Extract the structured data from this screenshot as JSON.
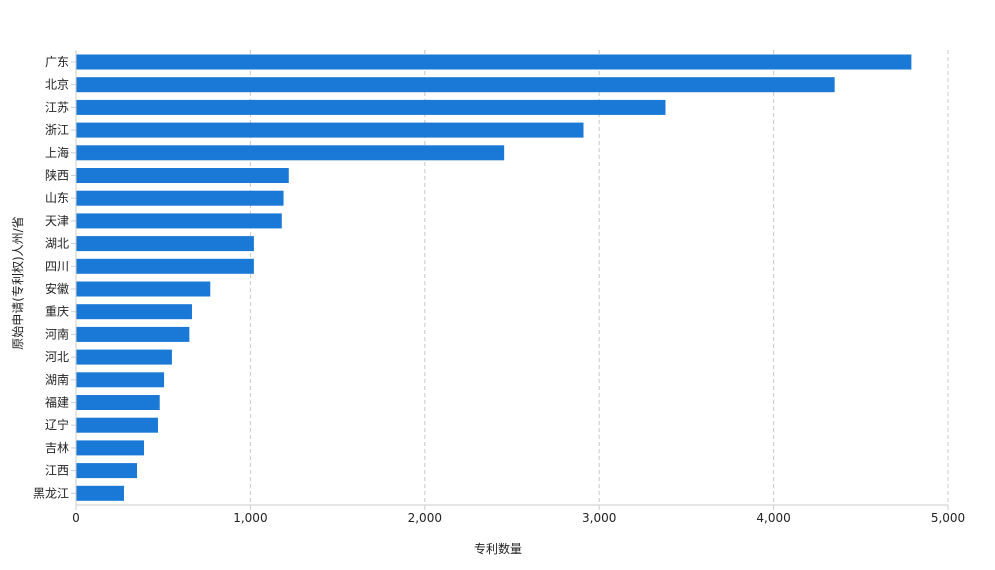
{
  "chart_data": {
    "type": "bar",
    "orientation": "horizontal",
    "xlabel": "专利数量",
    "ylabel": "原始申请(专利权)人州/省",
    "xlim": [
      0,
      5000
    ],
    "xticks": [
      0,
      1000,
      2000,
      3000,
      4000,
      5000
    ],
    "xtick_labels": [
      "0",
      "1,000",
      "2,000",
      "3,000",
      "4,000",
      "5,000"
    ],
    "grid": "vertical dashed",
    "legend": "none",
    "bar_color": "#1a78d6",
    "categories": [
      "广东",
      "北京",
      "江苏",
      "浙江",
      "上海",
      "陕西",
      "山东",
      "天津",
      "湖北",
      "四川",
      "安徽",
      "重庆",
      "河南",
      "河北",
      "湖南",
      "福建",
      "辽宁",
      "吉林",
      "江西",
      "黑龙江"
    ],
    "values": [
      4790,
      4350,
      3380,
      2910,
      2455,
      1220,
      1190,
      1180,
      1020,
      1020,
      770,
      665,
      650,
      550,
      505,
      480,
      470,
      390,
      350,
      275
    ]
  }
}
